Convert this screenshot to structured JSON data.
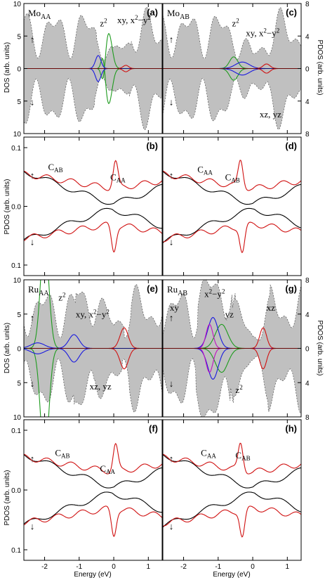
{
  "figure": {
    "x_axis_label": "Energy (eV)",
    "x_ticks": [
      "-2",
      "-1",
      "0",
      "1"
    ],
    "x_range": [
      -2.6,
      1.4
    ]
  },
  "chart_data": [
    {
      "id": "a",
      "type": "area",
      "panel_label": "(a)",
      "site_label": "Mo",
      "site_sub": "AA",
      "left_ylabel": "DOS (arb. units)",
      "right_ylabel": "PDOS (arb. units)",
      "left_ticks": [
        "10",
        "5",
        "0",
        "5",
        "10"
      ],
      "right_ticks": [
        "8",
        "4",
        "0",
        "4",
        "8"
      ],
      "spin_up": "↑",
      "spin_down": "↓",
      "annotations": [
        {
          "t": "z",
          "sup": "2",
          "x": -0.4,
          "y": 0.65
        },
        {
          "t": "xy, x",
          "sup": "2",
          "tail": "−y",
          "sup2": "2",
          "x": 0.1,
          "y": 0.7
        }
      ],
      "series": [
        {
          "name": "total DOS",
          "color": "#c0c0c0"
        },
        {
          "name": "z²",
          "color": "#1e9b1e"
        },
        {
          "name": "xy, x²−y²",
          "color": "#1a1adf"
        },
        {
          "name": "xz, yz",
          "color": "#d01010"
        }
      ]
    },
    {
      "id": "b",
      "type": "line",
      "panel_label": "(b)",
      "ylabel": "PDOS (arb. units)",
      "ticks": [
        "0.1",
        "0.0",
        "0.1"
      ],
      "spin_up": "↑",
      "spin_down": "↓",
      "annotations": [
        {
          "t": "C",
          "sub": "AB",
          "x": -1.9,
          "y": 0.07
        },
        {
          "t": "C",
          "sub": "AA",
          "x": -0.1,
          "y": 0.05
        }
      ],
      "series": [
        {
          "name": "C_AB",
          "color": "#000"
        },
        {
          "name": "C_AA",
          "color": "#d01010"
        }
      ]
    },
    {
      "id": "c",
      "type": "area",
      "panel_label": "(c)",
      "site_label": "Mo",
      "site_sub": "AB",
      "spin_up": "↑",
      "spin_down": "↓",
      "annotations": [
        {
          "t": "z",
          "sup": "2",
          "x": -0.6,
          "y": 0.65
        },
        {
          "t": "xy, x",
          "sup": "2",
          "tail": "−y",
          "sup2": "2",
          "x": -0.2,
          "y": 0.5
        },
        {
          "t": "xz, yz",
          "x": 0.2,
          "y": -0.75
        }
      ],
      "series": [
        {
          "name": "total DOS",
          "color": "#c0c0c0"
        },
        {
          "name": "z²",
          "color": "#1e9b1e"
        },
        {
          "name": "xy, x²−y²",
          "color": "#1a1adf"
        },
        {
          "name": "xz, yz",
          "color": "#d01010"
        }
      ]
    },
    {
      "id": "d",
      "type": "line",
      "panel_label": "(d)",
      "spin_up": "↑",
      "spin_down": "↓",
      "annotations": [
        {
          "t": "C",
          "sub": "AA",
          "x": -1.6,
          "y": 0.065
        },
        {
          "t": "C",
          "sub": "AB",
          "x": -0.8,
          "y": 0.05
        }
      ],
      "series": [
        {
          "name": "C_AA",
          "color": "#000"
        },
        {
          "name": "C_AB",
          "color": "#d01010"
        }
      ]
    },
    {
      "id": "e",
      "type": "area",
      "panel_label": "(e)",
      "site_label": "Ru",
      "site_sub": "AA",
      "spin_up": "↑",
      "spin_down": "↓",
      "annotations": [
        {
          "t": "z",
          "sup": "2",
          "x": -1.6,
          "y": 0.7
        },
        {
          "t": "xy, x",
          "sup": "2",
          "tail": "−y",
          "sup2": "2",
          "x": -1.1,
          "y": 0.45
        },
        {
          "t": "xz, yz",
          "x": -0.7,
          "y": -0.6
        }
      ],
      "series": [
        {
          "name": "total DOS",
          "color": "#c0c0c0"
        },
        {
          "name": "z²",
          "color": "#1e9b1e"
        },
        {
          "name": "xy, x²−y²",
          "color": "#1a1adf"
        },
        {
          "name": "xz, yz",
          "color": "#d01010"
        }
      ]
    },
    {
      "id": "f",
      "type": "line",
      "panel_label": "(f)",
      "spin_up": "↑",
      "spin_down": "↓",
      "annotations": [
        {
          "t": "C",
          "sub": "AB",
          "x": -1.7,
          "y": 0.065
        },
        {
          "t": "C",
          "sub": "AA",
          "x": -0.4,
          "y": 0.035
        }
      ],
      "series": [
        {
          "name": "C_AB",
          "color": "#000"
        },
        {
          "name": "C_AA",
          "color": "#d01010"
        }
      ]
    },
    {
      "id": "g",
      "type": "area",
      "panel_label": "(g)",
      "site_label": "Ru",
      "site_sub": "AB",
      "spin_up": "↑",
      "spin_down": "↓",
      "annotations": [
        {
          "t": "xy",
          "x": -2.4,
          "y": 0.55
        },
        {
          "t": "x",
          "sup": "2",
          "tail": "−y",
          "sup2": "2",
          "x": -1.4,
          "y": 0.75
        },
        {
          "t": "yz",
          "x": -0.8,
          "y": 0.45
        },
        {
          "t": "xz",
          "x": 0.4,
          "y": 0.55
        },
        {
          "t": "z",
          "sup": "2",
          "x": -0.5,
          "y": -0.65
        }
      ],
      "series": [
        {
          "name": "total DOS",
          "color": "#c0c0c0"
        },
        {
          "name": "z²",
          "color": "#1e9b1e"
        },
        {
          "name": "x²−y²",
          "color": "#1a1adf"
        },
        {
          "name": "xy",
          "color": "#c010c0"
        },
        {
          "name": "xz, yz",
          "color": "#d01010"
        }
      ]
    },
    {
      "id": "h",
      "type": "line",
      "panel_label": "(h)",
      "spin_up": "↑",
      "spin_down": "↓",
      "annotations": [
        {
          "t": "C",
          "sub": "AA",
          "x": -1.5,
          "y": 0.065
        },
        {
          "t": "C",
          "sub": "AB",
          "x": -0.5,
          "y": 0.06
        }
      ],
      "series": [
        {
          "name": "C_AA",
          "color": "#000"
        },
        {
          "name": "C_AB",
          "color": "#d01010"
        }
      ]
    }
  ]
}
